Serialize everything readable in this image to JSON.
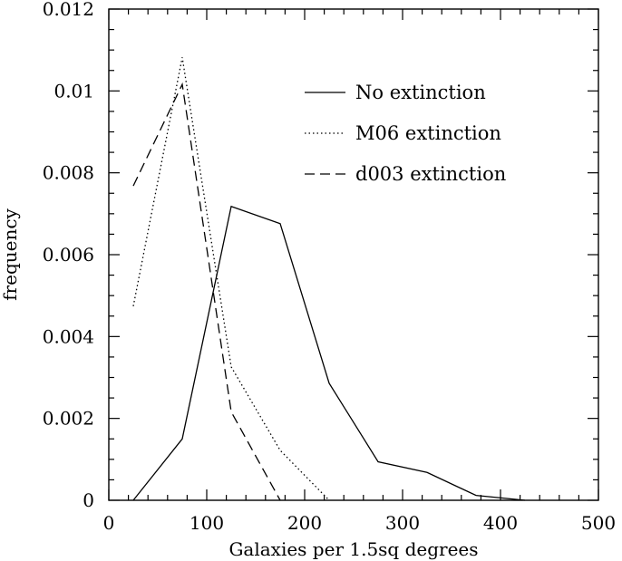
{
  "chart_data": {
    "type": "line",
    "xlabel": "Galaxies per 1.5sq degrees",
    "ylabel": "frequency",
    "xlim": [
      0,
      500
    ],
    "ylim": [
      0,
      0.012
    ],
    "x_ticks": [
      "0",
      "100",
      "200",
      "300",
      "400",
      "500"
    ],
    "y_ticks": [
      "0",
      "0.002",
      "0.004",
      "0.006",
      "0.008",
      "0.01",
      "0.012"
    ],
    "legend_position": "top-right",
    "series": [
      {
        "name": "No extinction",
        "dash": "solid",
        "x": [
          25,
          75,
          125,
          175,
          225,
          275,
          325,
          375,
          425
        ],
        "y": [
          0.0,
          0.0015,
          0.00718,
          0.00676,
          0.00286,
          0.00094,
          0.00068,
          0.00012,
          0.0
        ]
      },
      {
        "name": "M06 extinction",
        "dash": "dotted",
        "x": [
          25,
          75,
          125,
          175,
          225
        ],
        "y": [
          0.00474,
          0.01082,
          0.00326,
          0.00122,
          0.0
        ]
      },
      {
        "name": "d003 extinction",
        "dash": "dashed",
        "x": [
          25,
          75,
          125,
          175
        ],
        "y": [
          0.00768,
          0.01016,
          0.00216,
          0.0
        ]
      }
    ]
  }
}
